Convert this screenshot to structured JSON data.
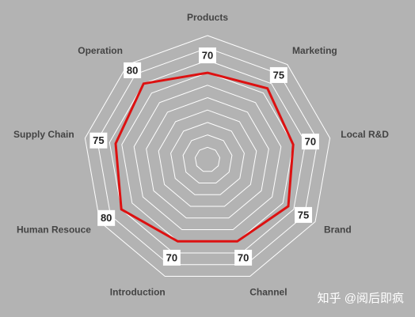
{
  "chart_data": {
    "type": "radar",
    "categories": [
      "Products",
      "Marketing",
      "Local R&D",
      "Brand",
      "Channel",
      "Introduction",
      "Human Resouce",
      "Supply Chain",
      "Operation"
    ],
    "series": [
      {
        "color": "#dd1111",
        "values": [
          70,
          75,
          70,
          75,
          70,
          70,
          80,
          75,
          80
        ]
      }
    ],
    "ylim": [
      0,
      100
    ],
    "yticks": [
      10,
      20,
      30,
      40,
      50,
      60,
      70,
      80,
      90,
      100
    ],
    "grid": true,
    "watermark": "知乎 @阅后即疯"
  }
}
